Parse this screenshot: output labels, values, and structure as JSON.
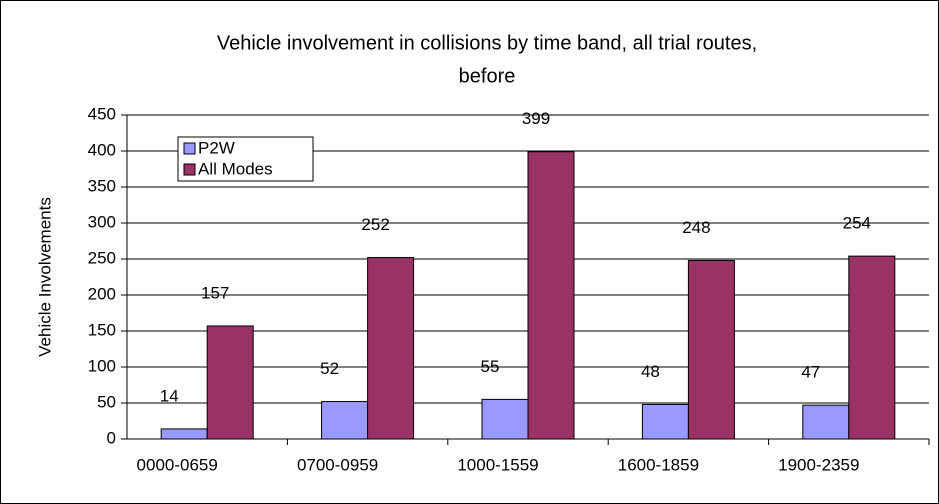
{
  "chart_data": {
    "type": "bar",
    "title": [
      "Vehicle involvement in collisions by time band, all trial routes,",
      "before"
    ],
    "y_label": "Vehicle Involvements",
    "categories": [
      "0000-0659",
      "0700-0959",
      "1000-1559",
      "1600-1859",
      "1900-2359"
    ],
    "series": [
      {
        "name": "P2W",
        "color": "#9999ff",
        "values": [
          14,
          52,
          55,
          48,
          47
        ]
      },
      {
        "name": "All Modes",
        "color": "#993366",
        "values": [
          157,
          252,
          399,
          248,
          254
        ]
      }
    ],
    "ylim": [
      0,
      450
    ],
    "yticks": [
      0,
      50,
      100,
      150,
      200,
      250,
      300,
      350,
      400,
      450
    ],
    "grid": true,
    "legend": "top-left"
  }
}
